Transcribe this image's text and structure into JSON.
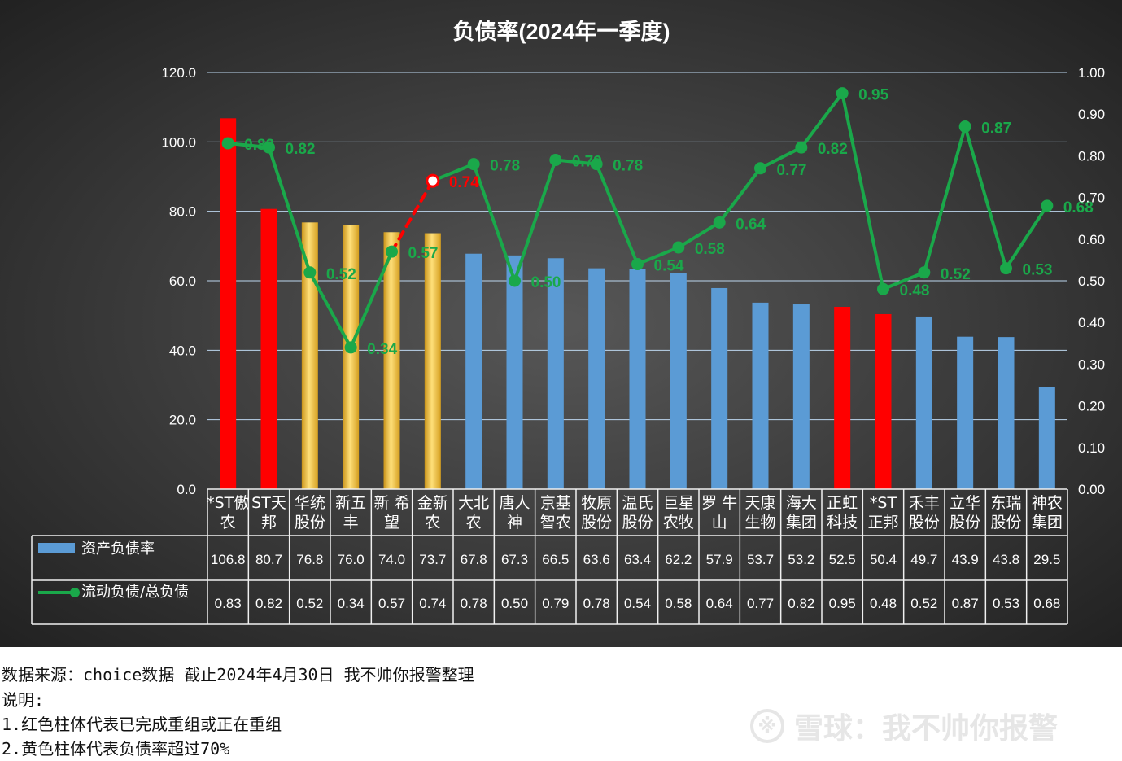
{
  "chart_data": {
    "type": "bar",
    "title": "负债率(2024年一季度)",
    "categories": [
      [
        "*ST傲",
        "农"
      ],
      [
        "ST天",
        "邦"
      ],
      [
        "华统",
        "股份"
      ],
      [
        "新五",
        "丰"
      ],
      [
        "新 希",
        "望"
      ],
      [
        "金新",
        "农"
      ],
      [
        "大北",
        "农"
      ],
      [
        "唐人",
        "神"
      ],
      [
        "京基",
        "智农"
      ],
      [
        "牧原",
        "股份"
      ],
      [
        "温氏",
        "股份"
      ],
      [
        "巨星",
        "农牧"
      ],
      [
        "罗 牛",
        "山"
      ],
      [
        "天康",
        "生物"
      ],
      [
        "海大",
        "集团"
      ],
      [
        "正虹",
        "科技"
      ],
      [
        "*ST",
        "正邦"
      ],
      [
        "禾丰",
        "股份"
      ],
      [
        "立华",
        "股份"
      ],
      [
        "东瑞",
        "股份"
      ],
      [
        "神农",
        "集团"
      ]
    ],
    "series": [
      {
        "name": "资产负债率",
        "type": "bar",
        "axis": "left",
        "color": "#5b9bd5",
        "values": [
          106.8,
          80.7,
          76.8,
          76.0,
          74.0,
          73.7,
          67.8,
          67.3,
          66.5,
          63.6,
          63.4,
          62.2,
          57.9,
          53.7,
          53.2,
          52.5,
          50.4,
          49.7,
          43.9,
          43.8,
          29.5
        ],
        "display": [
          "106.8",
          "80.7",
          "76.8",
          "76.0",
          "74.0",
          "73.7",
          "67.8",
          "67.3",
          "66.5",
          "63.6",
          "63.4",
          "62.2",
          "57.9",
          "53.7",
          "53.2",
          "52.5",
          "50.4",
          "49.7",
          "43.9",
          "43.8",
          "29.5"
        ],
        "bar_colors": [
          "red",
          "red",
          "gold",
          "gold",
          "gold",
          "gold",
          "blue",
          "blue",
          "blue",
          "blue",
          "blue",
          "blue",
          "blue",
          "blue",
          "blue",
          "red",
          "red",
          "blue",
          "blue",
          "blue",
          "blue"
        ]
      },
      {
        "name": "流动负债/总负债",
        "type": "line",
        "axis": "right",
        "color": "#1aa84a",
        "values": [
          0.83,
          0.82,
          0.52,
          0.34,
          0.57,
          0.74,
          0.78,
          0.5,
          0.79,
          0.78,
          0.54,
          0.58,
          0.64,
          0.77,
          0.82,
          0.95,
          0.48,
          0.52,
          0.87,
          0.53,
          0.68
        ],
        "display": [
          "0.83",
          "0.82",
          "0.52",
          "0.34",
          "0.57",
          "0.74",
          "0.78",
          "0.50",
          "0.79",
          "0.78",
          "0.54",
          "0.58",
          "0.64",
          "0.77",
          "0.82",
          "0.95",
          "0.48",
          "0.52",
          "0.87",
          "0.53",
          "0.68"
        ],
        "highlight_segment": [
          4,
          5
        ],
        "highlight_color": "#ff0000"
      }
    ],
    "y_left": {
      "min": 0,
      "max": 120,
      "ticks": [
        "0.0",
        "20.0",
        "40.0",
        "60.0",
        "80.0",
        "100.0",
        "120.0"
      ]
    },
    "y_right": {
      "min": 0,
      "max": 1.0,
      "ticks": [
        "0.00",
        "0.10",
        "0.20",
        "0.30",
        "0.40",
        "0.50",
        "0.60",
        "0.70",
        "0.80",
        "0.90",
        "1.00"
      ]
    },
    "grid": true,
    "legend": "data-table",
    "colors": {
      "red": "#ff0000",
      "blue": "#5b9bd5",
      "gold": "#f0c232",
      "line": "#1aa84a",
      "background": "#3a3a3a"
    }
  },
  "notes": {
    "source": "数据来源：choice数据 截止2024年4月30日 我不帅你报警整理",
    "explain_label": "说明:",
    "item1": "1.红色柱体代表已完成重组或正在重组",
    "item2": "2.黄色柱体代表负债率超过70%"
  },
  "watermark": {
    "text": "雪球：我不帅你报警"
  }
}
